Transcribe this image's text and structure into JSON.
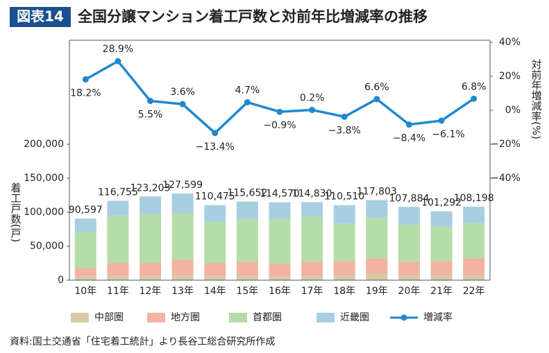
{
  "chart_data": {
    "type": "bar",
    "badge": "図表14",
    "title": "全国分譲マンション着工戸数と対前年比増減率の推移",
    "y_label": "着工戸数(戸)",
    "y2_label": "対前年増減率(%)",
    "source": "資料:国土交通省「住宅着工統計」より長谷工総合研究所作成",
    "categories": [
      "10年",
      "11年",
      "12年",
      "13年",
      "14年",
      "15年",
      "16年",
      "17年",
      "18年",
      "19年",
      "20年",
      "21年",
      "22年"
    ],
    "ylim": [
      0,
      350000
    ],
    "yticks": [
      0,
      {
        "value": 50000,
        "label": "50,000"
      },
      {
        "value": 100000,
        "label": "100,000"
      },
      {
        "value": 150000,
        "label": "150,000"
      },
      {
        "value": 200000,
        "label": "200,000"
      }
    ],
    "y2lim": [
      -100,
      40
    ],
    "y2ticks": [
      {
        "value": -40,
        "label": "−40%"
      },
      {
        "value": -20,
        "label": "−20%"
      },
      {
        "value": 0,
        "label": "0%"
      },
      {
        "value": 20,
        "label": "20%"
      },
      {
        "value": 40,
        "label": "40%"
      }
    ],
    "grid": false,
    "stacked": true,
    "series": [
      {
        "name": "中部圏",
        "type": "bar",
        "color": "#d5caa3",
        "values": [
          6000,
          6000,
          6000,
          7000,
          6000,
          6000,
          5000,
          6000,
          7000,
          9000,
          7000,
          7000,
          7000
        ]
      },
      {
        "name": "地方圏",
        "type": "bar",
        "color": "#f2b3a3",
        "values": [
          12000,
          19000,
          19000,
          23000,
          19000,
          21000,
          19000,
          21000,
          21000,
          23000,
          20000,
          21000,
          25000
        ]
      },
      {
        "name": "首都圏",
        "type": "bar",
        "color": "#b6dcaa",
        "values": [
          53000,
          70000,
          72000,
          69000,
          61000,
          63000,
          66000,
          67000,
          55000,
          60000,
          55000,
          51000,
          52000
        ]
      },
      {
        "name": "近畿圏",
        "type": "bar",
        "color": "#a8cee2",
        "values": [
          19597,
          21755,
          26203,
          28599,
          24475,
          25652,
          24570,
          20830,
          27510,
          25803,
          25884,
          22292,
          24198
        ]
      },
      {
        "name": "増減率",
        "type": "line",
        "axis": "y2",
        "color": "#1f88cf",
        "values": [
          18.2,
          28.9,
          5.5,
          3.6,
          -13.4,
          4.7,
          -0.9,
          0.2,
          -3.8,
          6.6,
          -8.4,
          -6.1,
          6.8
        ],
        "value_labels": [
          "18.2%",
          "28.9%",
          "5.5%",
          "3.6%",
          "−13.4%",
          "4.7%",
          "−0.9%",
          "0.2%",
          "−3.8%",
          "6.6%",
          "−8.4%",
          "−6.1%",
          "6.8%"
        ]
      }
    ],
    "totals": [
      90597,
      116755,
      123203,
      127599,
      110475,
      115652,
      114570,
      114830,
      110510,
      117803,
      107884,
      101292,
      108198
    ],
    "total_labels": [
      "90,597",
      "116,755",
      "123,203",
      "127,599",
      "110,475",
      "115,652",
      "114,570",
      "114,830",
      "110,510",
      "117,803",
      "107,884",
      "101,292",
      "108,198"
    ]
  }
}
